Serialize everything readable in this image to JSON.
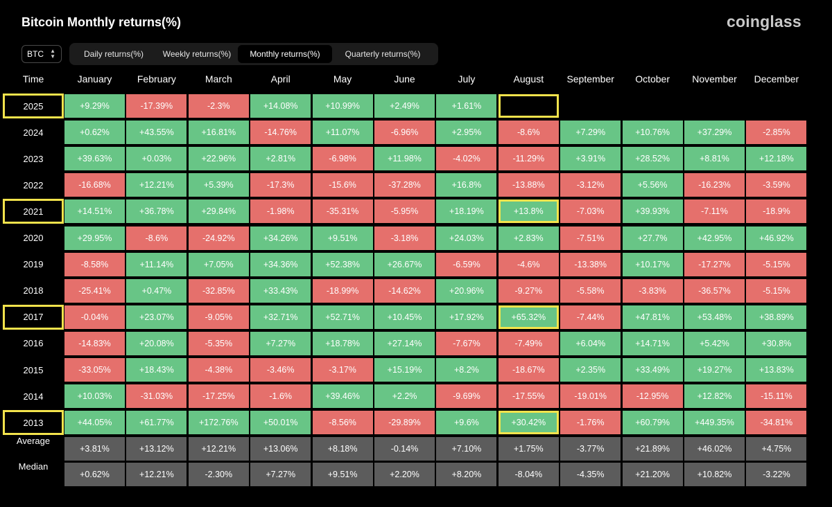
{
  "title": "Bitcoin Monthly returns(%)",
  "logo": "coinglass",
  "asset_select": "BTC",
  "tabs": [
    "Daily returns(%)",
    "Weekly returns(%)",
    "Monthly returns(%)",
    "Quarterly returns(%)"
  ],
  "active_tab": "Monthly returns(%)",
  "colors": {
    "positive": "#68c586",
    "negative": "#e5706c",
    "stat": "#5c5c5c",
    "highlight": "#f3e34c"
  },
  "table": {
    "corner_label": "Time",
    "months": [
      "January",
      "February",
      "March",
      "April",
      "May",
      "June",
      "July",
      "August",
      "September",
      "October",
      "November",
      "December"
    ],
    "rows": [
      {
        "year": "2025",
        "highlight": true,
        "highlight_cells": [
          7
        ],
        "values": [
          "+9.29%",
          "-17.39%",
          "-2.3%",
          "+14.08%",
          "+10.99%",
          "+2.49%",
          "+1.61%",
          "",
          "",
          "",
          "",
          ""
        ]
      },
      {
        "year": "2024",
        "values": [
          "+0.62%",
          "+43.55%",
          "+16.81%",
          "-14.76%",
          "+11.07%",
          "-6.96%",
          "+2.95%",
          "-8.6%",
          "+7.29%",
          "+10.76%",
          "+37.29%",
          "-2.85%"
        ]
      },
      {
        "year": "2023",
        "values": [
          "+39.63%",
          "+0.03%",
          "+22.96%",
          "+2.81%",
          "-6.98%",
          "+11.98%",
          "-4.02%",
          "-11.29%",
          "+3.91%",
          "+28.52%",
          "+8.81%",
          "+12.18%"
        ]
      },
      {
        "year": "2022",
        "values": [
          "-16.68%",
          "+12.21%",
          "+5.39%",
          "-17.3%",
          "-15.6%",
          "-37.28%",
          "+16.8%",
          "-13.88%",
          "-3.12%",
          "+5.56%",
          "-16.23%",
          "-3.59%"
        ]
      },
      {
        "year": "2021",
        "highlight": true,
        "highlight_cells": [
          7
        ],
        "values": [
          "+14.51%",
          "+36.78%",
          "+29.84%",
          "-1.98%",
          "-35.31%",
          "-5.95%",
          "+18.19%",
          "+13.8%",
          "-7.03%",
          "+39.93%",
          "-7.11%",
          "-18.9%"
        ]
      },
      {
        "year": "2020",
        "values": [
          "+29.95%",
          "-8.6%",
          "-24.92%",
          "+34.26%",
          "+9.51%",
          "-3.18%",
          "+24.03%",
          "+2.83%",
          "-7.51%",
          "+27.7%",
          "+42.95%",
          "+46.92%"
        ]
      },
      {
        "year": "2019",
        "values": [
          "-8.58%",
          "+11.14%",
          "+7.05%",
          "+34.36%",
          "+52.38%",
          "+26.67%",
          "-6.59%",
          "-4.6%",
          "-13.38%",
          "+10.17%",
          "-17.27%",
          "-5.15%"
        ]
      },
      {
        "year": "2018",
        "values": [
          "-25.41%",
          "+0.47%",
          "-32.85%",
          "+33.43%",
          "-18.99%",
          "-14.62%",
          "+20.96%",
          "-9.27%",
          "-5.58%",
          "-3.83%",
          "-36.57%",
          "-5.15%"
        ]
      },
      {
        "year": "2017",
        "highlight": true,
        "highlight_cells": [
          7
        ],
        "values": [
          "-0.04%",
          "+23.07%",
          "-9.05%",
          "+32.71%",
          "+52.71%",
          "+10.45%",
          "+17.92%",
          "+65.32%",
          "-7.44%",
          "+47.81%",
          "+53.48%",
          "+38.89%"
        ]
      },
      {
        "year": "2016",
        "values": [
          "-14.83%",
          "+20.08%",
          "-5.35%",
          "+7.27%",
          "+18.78%",
          "+27.14%",
          "-7.67%",
          "-7.49%",
          "+6.04%",
          "+14.71%",
          "+5.42%",
          "+30.8%"
        ]
      },
      {
        "year": "2015",
        "values": [
          "-33.05%",
          "+18.43%",
          "-4.38%",
          "-3.46%",
          "-3.17%",
          "+15.19%",
          "+8.2%",
          "-18.67%",
          "+2.35%",
          "+33.49%",
          "+19.27%",
          "+13.83%"
        ]
      },
      {
        "year": "2014",
        "values": [
          "+10.03%",
          "-31.03%",
          "-17.25%",
          "-1.6%",
          "+39.46%",
          "+2.2%",
          "-9.69%",
          "-17.55%",
          "-19.01%",
          "-12.95%",
          "+12.82%",
          "-15.11%"
        ]
      },
      {
        "year": "2013",
        "highlight": true,
        "highlight_cells": [
          7
        ],
        "values": [
          "+44.05%",
          "+61.77%",
          "+172.76%",
          "+50.01%",
          "-8.56%",
          "-29.89%",
          "+9.6%",
          "+30.42%",
          "-1.76%",
          "+60.79%",
          "+449.35%",
          "-34.81%"
        ]
      }
    ],
    "stats": [
      {
        "label": "Average",
        "values": [
          "+3.81%",
          "+13.12%",
          "+12.21%",
          "+13.06%",
          "+8.18%",
          "-0.14%",
          "+7.10%",
          "+1.75%",
          "-3.77%",
          "+21.89%",
          "+46.02%",
          "+4.75%"
        ]
      },
      {
        "label": "Median",
        "values": [
          "+0.62%",
          "+12.21%",
          "-2.30%",
          "+7.27%",
          "+9.51%",
          "+2.20%",
          "+8.20%",
          "-8.04%",
          "-4.35%",
          "+21.20%",
          "+10.82%",
          "-3.22%"
        ]
      }
    ]
  }
}
